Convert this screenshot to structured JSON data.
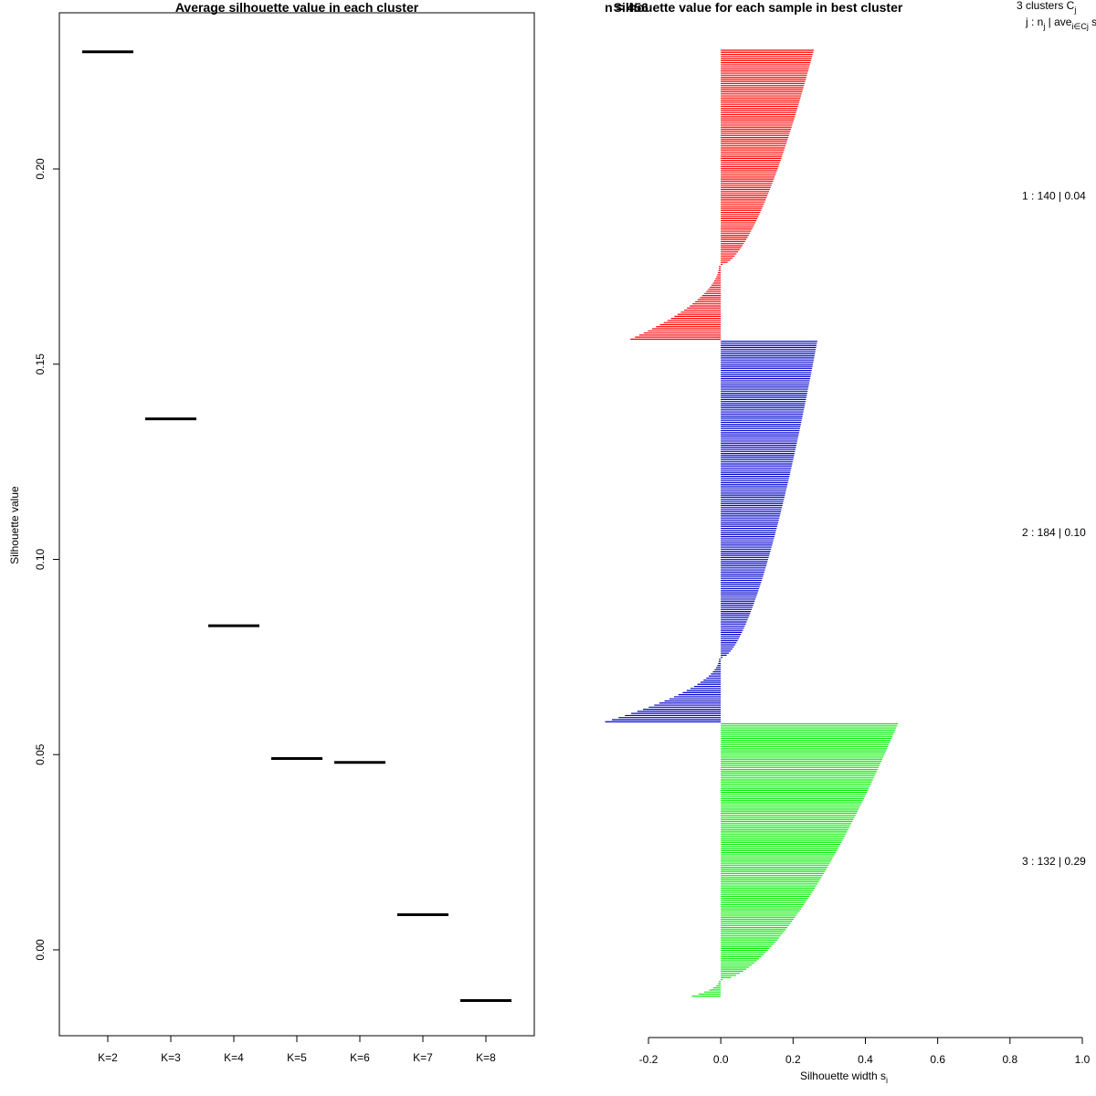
{
  "chart_data": [
    {
      "type": "line",
      "title": "Average silhouette value in each cluster",
      "xlabel": "",
      "ylabel": "Silhouette value",
      "categories": [
        "K=2",
        "K=3",
        "K=4",
        "K=5",
        "K=6",
        "K=7",
        "K=8"
      ],
      "values": [
        0.23,
        0.136,
        0.083,
        0.049,
        0.048,
        0.009,
        -0.013
      ],
      "ylim": [
        -0.022,
        0.24
      ],
      "yticks": [
        0.0,
        0.05,
        0.1,
        0.15,
        0.2
      ],
      "ytick_labels": [
        "0.00",
        "0.05",
        "0.10",
        "0.15",
        "0.20"
      ]
    },
    {
      "type": "bar",
      "orientation": "horizontal",
      "title": "Silhouette value for each sample in best cluster",
      "overlapping_title_text": "n = 456",
      "xlabel": "Silhouette width s",
      "xlabel_subscript": "i",
      "xlim": [
        -0.2,
        1.0
      ],
      "xticks": [
        -0.2,
        0.0,
        0.2,
        0.4,
        0.6,
        0.8,
        1.0
      ],
      "xtick_labels": [
        "-0.2",
        "0.0",
        "0.2",
        "0.4",
        "0.6",
        "0.8",
        "1.0"
      ],
      "legend_header": {
        "line1_prefix": "3  clusters  C",
        "line1_sub": "j",
        "line2_a": "j :  n",
        "line2_sub1": "j",
        "line2_b": " | ave",
        "line2_sub2": "i∈Cj",
        "line2_c": "  s"
      },
      "series": [
        {
          "name": "1",
          "n": 140,
          "avg": 0.04,
          "label": "1 :   140  |  0.04",
          "color": "#ff0000",
          "max": 0.26,
          "min": -0.25,
          "zero_fraction": 0.745
        },
        {
          "name": "2",
          "n": 184,
          "avg": 0.1,
          "label": "2 :   184  |  0.10",
          "color": "#0000cd",
          "max": 0.27,
          "min": -0.32,
          "zero_fraction": 0.83
        },
        {
          "name": "3",
          "n": 132,
          "avg": 0.29,
          "label": "3 :   132  |  0.29",
          "color": "#00ee00",
          "max": 0.5,
          "min": -0.08,
          "zero_fraction": 0.94
        }
      ]
    }
  ]
}
